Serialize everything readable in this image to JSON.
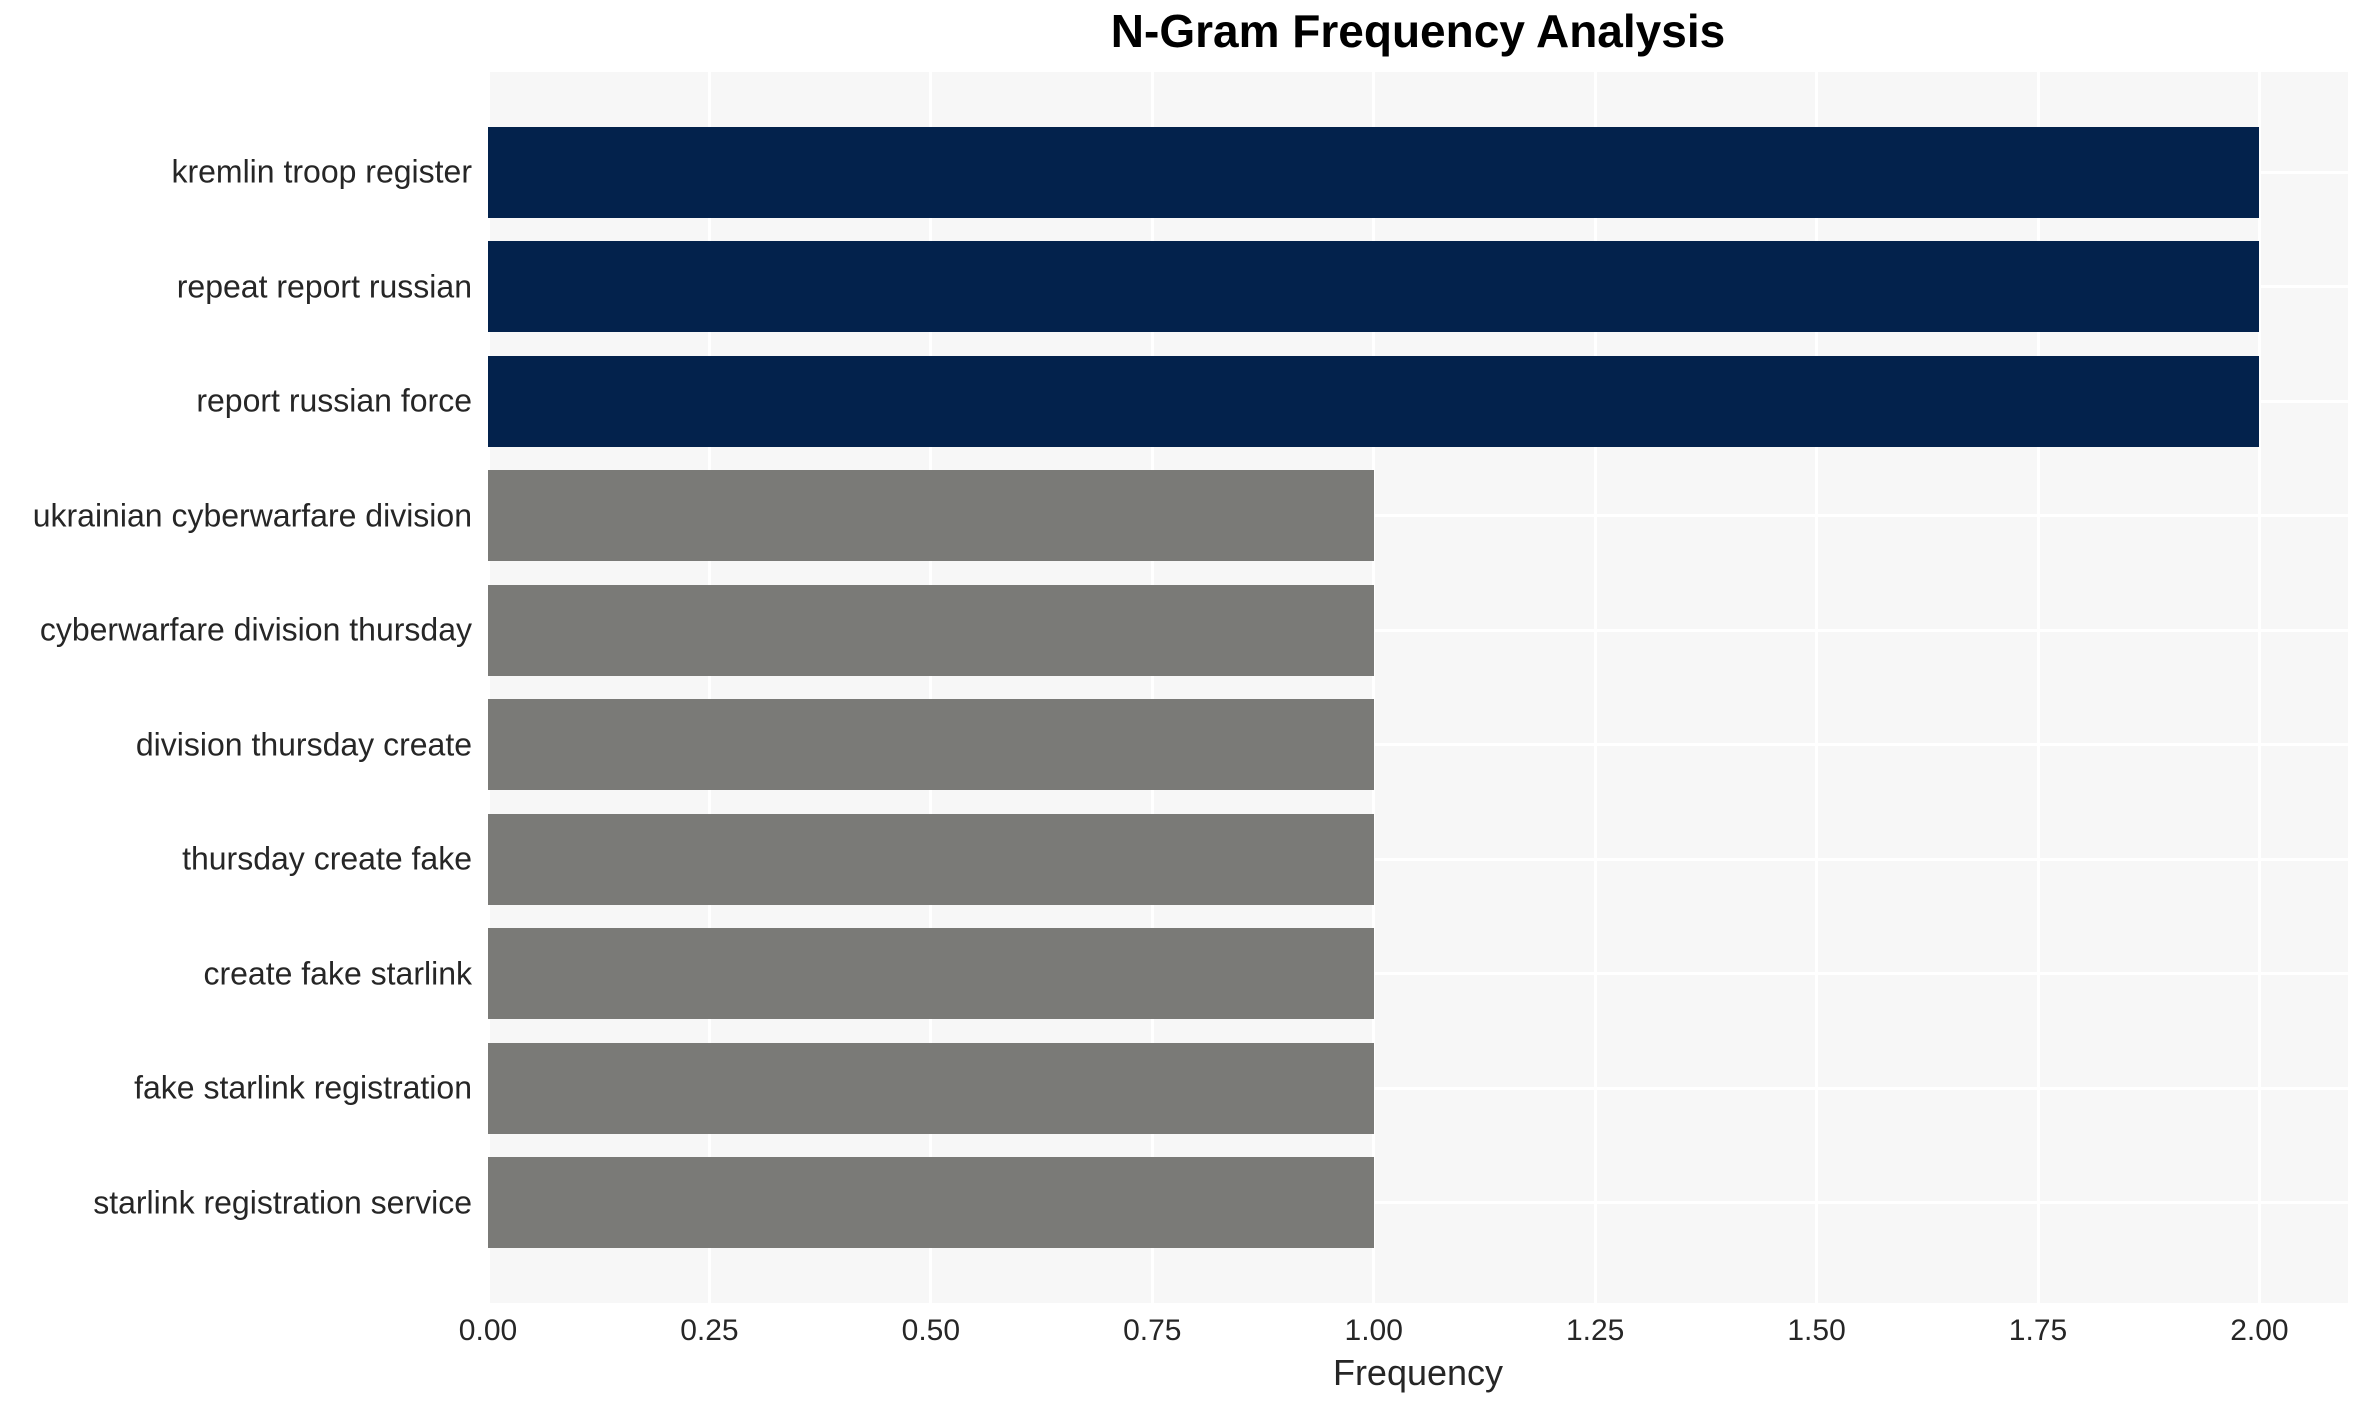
{
  "chart_data": {
    "type": "bar",
    "orientation": "horizontal",
    "title": "N-Gram Frequency Analysis",
    "xlabel": "Frequency",
    "ylabel": "",
    "categories": [
      "kremlin troop register",
      "repeat report russian",
      "report russian force",
      "ukrainian cyberwarfare division",
      "cyberwarfare division thursday",
      "division thursday create",
      "thursday create fake",
      "create fake starlink",
      "fake starlink registration",
      "starlink registration service"
    ],
    "values": [
      2,
      2,
      2,
      1,
      1,
      1,
      1,
      1,
      1,
      1
    ],
    "bar_colors": [
      "#03224c",
      "#03224c",
      "#03224c",
      "#7a7a77",
      "#7a7a77",
      "#7a7a77",
      "#7a7a77",
      "#7a7a77",
      "#7a7a77",
      "#7a7a77"
    ],
    "xtick_labels": [
      "0.00",
      "0.25",
      "0.50",
      "0.75",
      "1.00",
      "1.25",
      "1.50",
      "1.75",
      "2.00"
    ],
    "xtick_values": [
      0,
      0.25,
      0.5,
      0.75,
      1.0,
      1.25,
      1.5,
      1.75,
      2.0
    ],
    "xlim": [
      0,
      2.1
    ],
    "grid": true,
    "legend": false,
    "colors": {
      "navy_bar": "#03224c",
      "gray_bar": "#7a7a77",
      "plot_background": "#f7f7f7",
      "grid_color": "#ffffff",
      "text_color": "#262626",
      "title_color": "#000000"
    }
  }
}
